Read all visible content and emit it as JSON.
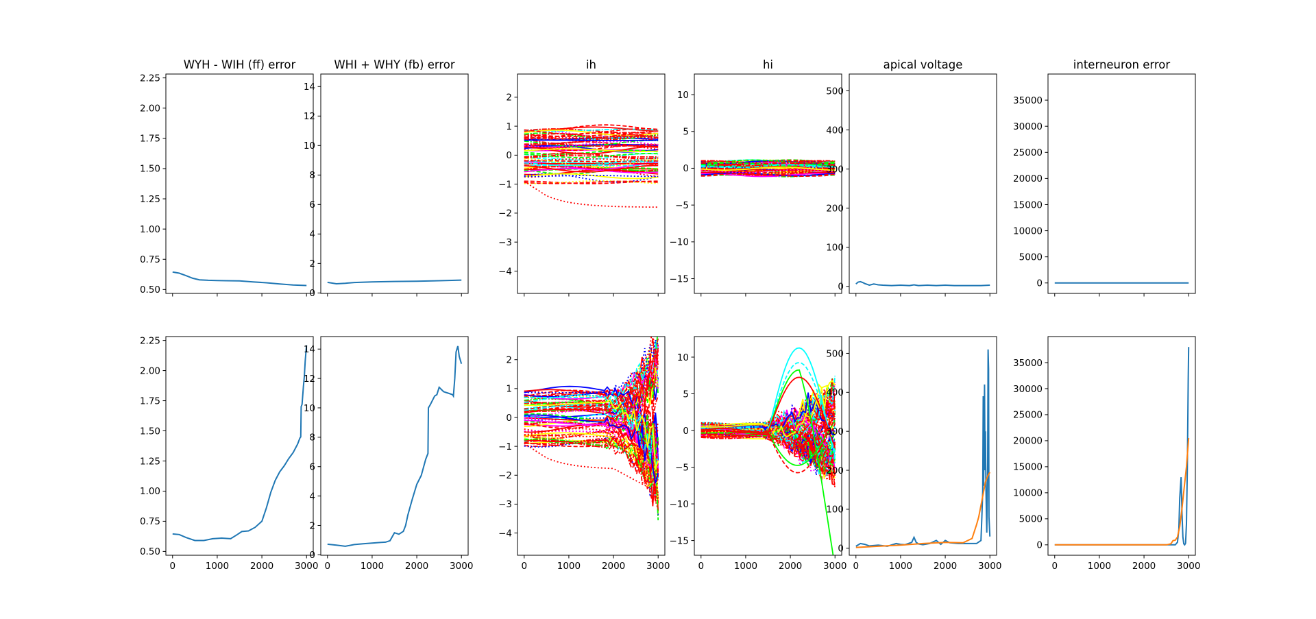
{
  "chart_data": [
    {
      "type": "line",
      "title": "WYH - WIH (ff) error",
      "xlim": [
        -150,
        3150
      ],
      "ylim": [
        0.468,
        2.282
      ],
      "yticks": [
        0.5,
        0.75,
        1.0,
        1.25,
        1.5,
        1.75,
        2.0,
        2.25
      ],
      "ytick_labels": [
        "0.50",
        "0.75",
        "1.00",
        "1.25",
        "1.50",
        "1.75",
        "2.00",
        "2.25"
      ],
      "xticks": [
        0,
        1000,
        2000,
        3000
      ],
      "xtick_labels": [],
      "series": [
        {
          "color": "#1f77b4",
          "x": [
            0,
            150,
            300,
            450,
            600,
            800,
            1000,
            1200,
            1500,
            1800,
            2100,
            2400,
            2700,
            3000
          ],
          "y": [
            0.645,
            0.635,
            0.615,
            0.593,
            0.58,
            0.576,
            0.574,
            0.573,
            0.571,
            0.563,
            0.556,
            0.546,
            0.537,
            0.533
          ]
        }
      ]
    },
    {
      "type": "line",
      "title": "WHI + WHY (fb) error",
      "xlim": [
        -150,
        3150
      ],
      "ylim": [
        -0.03,
        14.85
      ],
      "yticks": [
        0,
        2,
        4,
        6,
        8,
        10,
        12,
        14
      ],
      "ytick_labels": [
        "0",
        "2",
        "4",
        "6",
        "8",
        "10",
        "12",
        "14"
      ],
      "xticks": [
        0,
        1000,
        2000,
        3000
      ],
      "xtick_labels": [],
      "series": [
        {
          "color": "#1f77b4",
          "x": [
            0,
            200,
            400,
            600,
            1000,
            1500,
            2000,
            2500,
            3000
          ],
          "y": [
            0.72,
            0.62,
            0.66,
            0.71,
            0.75,
            0.78,
            0.8,
            0.83,
            0.87
          ]
        }
      ]
    },
    {
      "type": "line",
      "title": "ih",
      "xlim": [
        -150,
        3150
      ],
      "ylim": [
        -4.77,
        2.8
      ],
      "yticks": [
        -4,
        -3,
        -2,
        -1,
        0,
        1,
        2
      ],
      "ytick_labels": [
        "−4",
        "−3",
        "−2",
        "−1",
        "0",
        "1",
        "2"
      ],
      "xticks": [
        0,
        1000,
        2000,
        3000
      ],
      "xtick_labels": [],
      "series_summary": "many overlapping neuron traces between about -1 and 1.3, one dotted trace falling to about -1.75",
      "series": []
    },
    {
      "type": "line",
      "title": "hi",
      "xlim": [
        -150,
        3150
      ],
      "ylim": [
        -17.0,
        12.8
      ],
      "yticks": [
        -15,
        -10,
        -5,
        0,
        5,
        10
      ],
      "ytick_labels": [
        "−15",
        "−10",
        "−5",
        "0",
        "5",
        "10"
      ],
      "xticks": [
        0,
        1000,
        2000,
        3000
      ],
      "xtick_labels": [],
      "series_summary": "many overlapping neuron traces between about -1.5 and 2.3",
      "series": []
    },
    {
      "type": "line",
      "title": "apical voltage",
      "xlim": [
        -150,
        3150
      ],
      "ylim": [
        -18,
        543
      ],
      "yticks": [
        0,
        100,
        200,
        300,
        400,
        500
      ],
      "ytick_labels": [
        "0",
        "100",
        "200",
        "300",
        "400",
        "500"
      ],
      "xticks": [
        0,
        1000,
        2000,
        3000
      ],
      "xtick_labels": [],
      "series": [
        {
          "color": "#1f77b4",
          "x": [
            0,
            50,
            100,
            150,
            200,
            300,
            400,
            500,
            600,
            800,
            1000,
            1200,
            1300,
            1400,
            1600,
            1800,
            2000,
            2200,
            2500,
            2800,
            3000
          ],
          "y": [
            6,
            11,
            12,
            10,
            7,
            3,
            6,
            4,
            3,
            2,
            3,
            2,
            4,
            2,
            3,
            2,
            3,
            2,
            2,
            2,
            3
          ]
        }
      ]
    },
    {
      "type": "line",
      "title": "interneuron error",
      "xlim": [
        -150,
        3150
      ],
      "ylim": [
        -2000,
        40000
      ],
      "yticks": [
        0,
        5000,
        10000,
        15000,
        20000,
        25000,
        30000,
        35000
      ],
      "ytick_labels": [
        "0",
        "5000",
        "10000",
        "15000",
        "20000",
        "25000",
        "30000",
        "35000"
      ],
      "xticks": [
        0,
        1000,
        2000,
        3000
      ],
      "xtick_labels": [],
      "series": [
        {
          "color": "#1f77b4",
          "x": [
            0,
            3000
          ],
          "y": [
            0,
            0
          ]
        }
      ]
    },
    {
      "type": "line",
      "title": "",
      "xlim": [
        -150,
        3150
      ],
      "ylim": [
        0.468,
        2.282
      ],
      "yticks": [
        0.5,
        0.75,
        1.0,
        1.25,
        1.5,
        1.75,
        2.0,
        2.25
      ],
      "ytick_labels": [
        "0.50",
        "0.75",
        "1.00",
        "1.25",
        "1.50",
        "1.75",
        "2.00",
        "2.25"
      ],
      "xticks": [
        0,
        1000,
        2000,
        3000
      ],
      "xtick_labels": [
        "0",
        "1000",
        "2000",
        "3000"
      ],
      "series": [
        {
          "color": "#1f77b4",
          "x": [
            0,
            150,
            300,
            500,
            700,
            900,
            1100,
            1300,
            1450,
            1550,
            1700,
            1850,
            2000,
            2100,
            2200,
            2300,
            2400,
            2500,
            2600,
            2700,
            2800,
            2850,
            2870,
            2880,
            2900,
            2930,
            2950,
            2970,
            3000
          ],
          "y": [
            0.645,
            0.64,
            0.615,
            0.59,
            0.59,
            0.605,
            0.61,
            0.605,
            0.64,
            0.665,
            0.67,
            0.7,
            0.75,
            0.86,
            0.99,
            1.09,
            1.16,
            1.21,
            1.27,
            1.32,
            1.39,
            1.44,
            1.45,
            1.7,
            1.72,
            1.87,
            1.95,
            2.08,
            2.21
          ]
        }
      ]
    },
    {
      "type": "line",
      "title": "",
      "xlim": [
        -150,
        3150
      ],
      "ylim": [
        -0.03,
        14.85
      ],
      "yticks": [
        0,
        2,
        4,
        6,
        8,
        10,
        12,
        14
      ],
      "ytick_labels": [
        "0",
        "2",
        "4",
        "6",
        "8",
        "10",
        "12",
        "14"
      ],
      "xticks": [
        0,
        1000,
        2000,
        3000
      ],
      "xtick_labels": [
        "0",
        "1000",
        "2000",
        "3000"
      ],
      "series": [
        {
          "color": "#1f77b4",
          "x": [
            0,
            200,
            400,
            600,
            800,
            1000,
            1200,
            1300,
            1400,
            1500,
            1600,
            1700,
            1750,
            1800,
            1900,
            2000,
            2100,
            2200,
            2250,
            2260,
            2300,
            2400,
            2450,
            2500,
            2600,
            2700,
            2800,
            2820,
            2850,
            2880,
            2920,
            2950,
            3000
          ],
          "y": [
            0.72,
            0.66,
            0.58,
            0.7,
            0.75,
            0.8,
            0.84,
            0.86,
            0.96,
            1.5,
            1.4,
            1.6,
            2.0,
            2.7,
            3.8,
            4.8,
            5.4,
            6.5,
            6.9,
            10.0,
            10.2,
            10.8,
            10.9,
            11.4,
            11.1,
            11.0,
            10.9,
            10.8,
            12.0,
            13.8,
            14.2,
            13.5,
            13.0
          ]
        }
      ]
    },
    {
      "type": "line",
      "title": "",
      "xlim": [
        -150,
        3150
      ],
      "ylim": [
        -4.77,
        2.8
      ],
      "yticks": [
        -4,
        -3,
        -2,
        -1,
        0,
        1,
        2
      ],
      "ytick_labels": [
        "−4",
        "−3",
        "−2",
        "−1",
        "0",
        "1",
        "2"
      ],
      "xticks": [
        0,
        1000,
        2000,
        3000
      ],
      "xtick_labels": [
        "0",
        "1000",
        "2000",
        "3000"
      ],
      "series_summary": "many overlapping neuron traces spreading after 2000, up to about 2.4 and down to about -4.4",
      "series": []
    },
    {
      "type": "line",
      "title": "",
      "xlim": [
        -150,
        3150
      ],
      "ylim": [
        -17.0,
        12.8
      ],
      "yticks": [
        -15,
        -10,
        -5,
        0,
        5,
        10
      ],
      "ytick_labels": [
        "−15",
        "−10",
        "−5",
        "0",
        "5",
        "10"
      ],
      "xticks": [
        0,
        1000,
        2000,
        3000
      ],
      "xtick_labels": [
        "0",
        "1000",
        "2000",
        "3000"
      ],
      "series_summary": "many overlapping neuron traces spreading after 1500, up to about 11.5 and down to about -15.5",
      "series": []
    },
    {
      "type": "line",
      "title": "",
      "xlim": [
        -150,
        3150
      ],
      "ylim": [
        -18,
        543
      ],
      "yticks": [
        0,
        100,
        200,
        300,
        400,
        500
      ],
      "ytick_labels": [
        "0",
        "100",
        "200",
        "300",
        "400",
        "500"
      ],
      "xticks": [
        0,
        1000,
        2000,
        3000
      ],
      "xtick_labels": [
        "0",
        "1000",
        "2000",
        "3000"
      ],
      "series": [
        {
          "color": "#1f77b4",
          "x": [
            0,
            100,
            200,
            300,
            500,
            700,
            900,
            1000,
            1100,
            1250,
            1300,
            1350,
            1400,
            1500,
            1650,
            1800,
            1900,
            2000,
            2100,
            2300,
            2500,
            2700,
            2800,
            2820,
            2840,
            2850,
            2860,
            2870,
            2880,
            2890,
            2900,
            2910,
            2920,
            2930,
            2950,
            2960,
            2970,
            2980,
            3000
          ],
          "y": [
            5,
            12,
            10,
            6,
            8,
            5,
            12,
            10,
            9,
            15,
            28,
            15,
            11,
            9,
            12,
            20,
            10,
            20,
            14,
            12,
            12,
            12,
            20,
            80,
            150,
            390,
            160,
            300,
            420,
            200,
            300,
            160,
            100,
            40,
            220,
            510,
            460,
            80,
            30
          ]
        },
        {
          "color": "#ff7f0e",
          "x": [
            0,
            500,
            1000,
            1500,
            2000,
            2400,
            2600,
            2700,
            2750,
            2800,
            2850,
            2900,
            2950,
            3000
          ],
          "y": [
            2,
            5,
            8,
            12,
            15,
            14,
            25,
            60,
            80,
            110,
            140,
            170,
            185,
            195
          ]
        }
      ]
    },
    {
      "type": "line",
      "title": "",
      "xlim": [
        -150,
        3150
      ],
      "ylim": [
        -2000,
        40000
      ],
      "yticks": [
        0,
        5000,
        10000,
        15000,
        20000,
        25000,
        30000,
        35000
      ],
      "ytick_labels": [
        "0",
        "5000",
        "10000",
        "15000",
        "20000",
        "25000",
        "30000",
        "35000"
      ],
      "xticks": [
        0,
        1000,
        2000,
        3000
      ],
      "xtick_labels": [
        "0",
        "1000",
        "2000",
        "3000"
      ],
      "series": [
        {
          "color": "#1f77b4",
          "x": [
            0,
            2700,
            2750,
            2780,
            2800,
            2830,
            2850,
            2870,
            2890,
            2910,
            2930,
            2950,
            2970,
            2990,
            3000
          ],
          "y": [
            0,
            0,
            500,
            3000,
            9000,
            13000,
            6000,
            1500,
            200,
            0,
            300,
            4000,
            15000,
            32000,
            38000
          ]
        },
        {
          "color": "#ff7f0e",
          "x": [
            0,
            2500,
            2600,
            2650,
            2700,
            2750,
            2800,
            2850,
            2900,
            2950,
            3000
          ],
          "y": [
            0,
            0,
            200,
            800,
            900,
            1500,
            3500,
            7000,
            11000,
            15000,
            20500
          ]
        }
      ]
    }
  ]
}
